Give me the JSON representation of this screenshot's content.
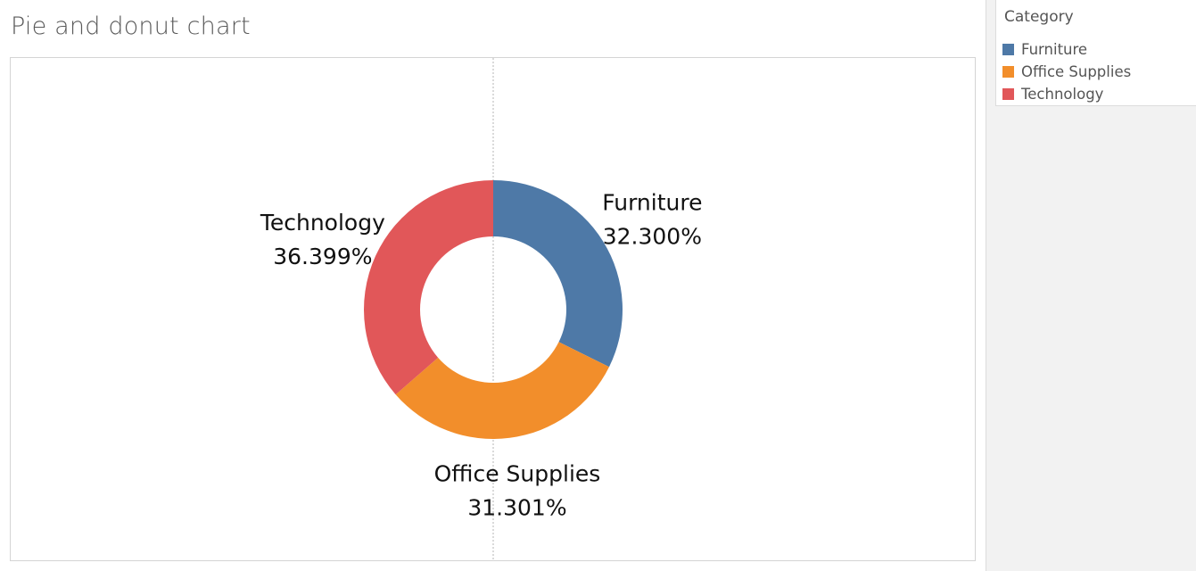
{
  "worksheet": {
    "title": "Pie and donut chart"
  },
  "legend": {
    "title": "Category",
    "items": [
      {
        "label": "Furniture",
        "color": "#4e79a7"
      },
      {
        "label": "Office Supplies",
        "color": "#f28e2b"
      },
      {
        "label": "Technology",
        "color": "#e15759"
      }
    ]
  },
  "chart_data": {
    "type": "pie",
    "variant": "donut",
    "categories": [
      "Furniture",
      "Office Supplies",
      "Technology"
    ],
    "values": [
      32.3,
      31.301,
      36.399
    ],
    "value_labels": [
      "32.300%",
      "31.301%",
      "36.399%"
    ],
    "colors": [
      "#4e79a7",
      "#f28e2b",
      "#e15759"
    ],
    "start": "top",
    "direction": "clockwise",
    "title": "",
    "xlabel": "",
    "ylabel": ""
  }
}
